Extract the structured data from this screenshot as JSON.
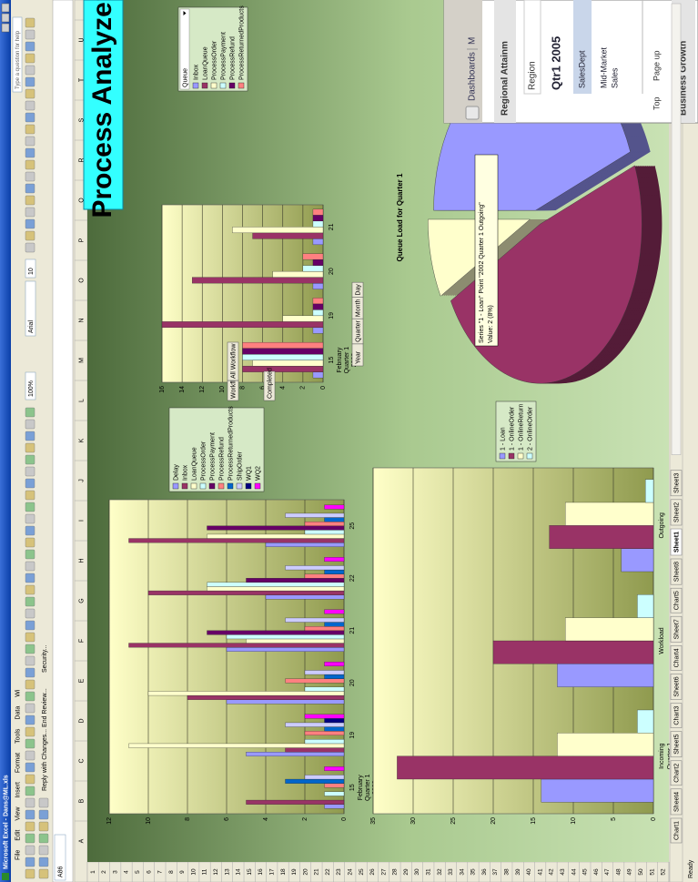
{
  "window": {
    "title": "Microsoft Excel - Dans@ML.xls",
    "menus": [
      "File",
      "Edit",
      "View",
      "Insert",
      "Format",
      "Tools",
      "Data",
      "Wi"
    ],
    "help_box": "Type a question for help",
    "zoom": "100%",
    "font": "Arial",
    "font_size": "10",
    "review": "Reply with Changes... End Review...",
    "security": "Security...",
    "name_box": "A86",
    "status": "Ready"
  },
  "banner": "Process Analyzer",
  "columns": [
    "A",
    "B",
    "C",
    "D",
    "E",
    "F",
    "G",
    "H",
    "I",
    "J",
    "K",
    "L",
    "M",
    "N",
    "O",
    "P",
    "Q",
    "R",
    "S",
    "T",
    "U"
  ],
  "rows": [
    1,
    2,
    3,
    4,
    5,
    6,
    7,
    8,
    9,
    10,
    11,
    12,
    13,
    14,
    15,
    16,
    17,
    18,
    19,
    20,
    21,
    22,
    23,
    24,
    25,
    26,
    27,
    28,
    29,
    30,
    31,
    32,
    33,
    34,
    35,
    36,
    37,
    38,
    39,
    40,
    41,
    42,
    43,
    44,
    45,
    46,
    47,
    48,
    49,
    50,
    51,
    52
  ],
  "sheet_tabs": [
    "Chart1",
    "Sheet4",
    "Chart2",
    "Sheet5",
    "Chart3",
    "Sheet6",
    "Chart4",
    "Sheet7",
    "Chart5",
    "Sheet8",
    "Sheet1",
    "Sheet2",
    "Sheet3"
  ],
  "active_tab": 10,
  "controls": {
    "workflow": "Workflow",
    "workflow_value": "All Workflow",
    "status_button": "Completed",
    "time_levels": [
      "Year",
      "Quarter",
      "Month",
      "Day"
    ]
  },
  "chart_data": [
    {
      "type": "bar",
      "categories": [
        "15",
        "19",
        "20",
        "21",
        "22",
        "25"
      ],
      "group_label": [
        "February",
        "Quarter 1",
        "2002"
      ],
      "ylim": [
        0,
        12
      ],
      "yticks": [
        0,
        2,
        4,
        6,
        8,
        10,
        12
      ],
      "grid": true,
      "series": [
        {
          "name": "Delay",
          "color": "#9999ff",
          "values": [
            1,
            5,
            6,
            6,
            4,
            4
          ]
        },
        {
          "name": "Inbox",
          "color": "#993366",
          "values": [
            5,
            3,
            8,
            11,
            10,
            11
          ]
        },
        {
          "name": "LoanQueue",
          "color": "#ffffcc",
          "values": [
            0,
            11,
            10,
            5,
            7,
            7
          ]
        },
        {
          "name": "ProcessOrder",
          "color": "#ccffff",
          "values": [
            1,
            2,
            2,
            6,
            7,
            2
          ]
        },
        {
          "name": "ProcessPayment",
          "color": "#660066",
          "values": [
            0,
            0,
            0,
            7,
            5,
            7
          ]
        },
        {
          "name": "ProcessRefund",
          "color": "#ff8080",
          "values": [
            1,
            2,
            3,
            2,
            2,
            2
          ]
        },
        {
          "name": "ProcessReturnedProducts",
          "color": "#0066cc",
          "values": [
            3,
            1,
            1,
            1,
            1,
            1
          ]
        },
        {
          "name": "ShipOrder",
          "color": "#ccccff",
          "values": [
            2,
            3,
            2,
            3,
            3,
            3
          ]
        },
        {
          "name": "WQ1",
          "color": "#000080",
          "values": [
            0,
            1,
            0,
            0,
            0,
            0
          ]
        },
        {
          "name": "WQ2",
          "color": "#ff00ff",
          "values": [
            1,
            2,
            1,
            1,
            1,
            1
          ]
        }
      ]
    },
    {
      "type": "bar",
      "categories": [
        "Incoming",
        "Workload",
        "Outgoing"
      ],
      "group_label": [
        "Quarter 1",
        "2002"
      ],
      "ylim": [
        0,
        35
      ],
      "yticks": [
        0,
        5,
        10,
        15,
        20,
        25,
        30,
        35
      ],
      "grid": true,
      "series": [
        {
          "name": "1 - Loan",
          "color": "#9999ff",
          "values": [
            14,
            12,
            4
          ]
        },
        {
          "name": "1 - OnlineOrder",
          "color": "#993366",
          "values": [
            32,
            20,
            13
          ]
        },
        {
          "name": "1 - OnlineReturn",
          "color": "#ffffcc",
          "values": [
            12,
            11,
            11
          ]
        },
        {
          "name": "2 - OnlineOrder",
          "color": "#ccffff",
          "values": [
            2,
            2,
            1
          ]
        }
      ]
    },
    {
      "type": "bar",
      "categories": [
        "15",
        "19",
        "20",
        "21"
      ],
      "group_label": [
        "February",
        "Quarter 1",
        "2002"
      ],
      "ylim": [
        0,
        16
      ],
      "yticks": [
        0,
        2,
        4,
        6,
        8,
        10,
        12,
        14,
        16
      ],
      "grid": true,
      "legend_title": "Queue",
      "series": [
        {
          "name": "Inbox",
          "color": "#9999ff",
          "values": [
            1,
            1,
            1,
            1
          ]
        },
        {
          "name": "LoanQueue",
          "color": "#993366",
          "values": [
            8,
            16,
            13,
            7
          ]
        },
        {
          "name": "ProcessOrder",
          "color": "#ffffcc",
          "values": [
            7,
            4,
            5,
            9
          ]
        },
        {
          "name": "ProcessPayment",
          "color": "#ccffff",
          "values": [
            8,
            1,
            2,
            1
          ]
        },
        {
          "name": "ProcessRefund",
          "color": "#660066",
          "values": [
            8,
            1,
            1,
            1
          ]
        },
        {
          "name": "ProcessReturnedProducts",
          "color": "#ff8080",
          "values": [
            8,
            1,
            2,
            1
          ]
        }
      ]
    },
    {
      "type": "pie",
      "title": "Queue Load for Quarter 1",
      "values": [
        11,
        12,
        2
      ],
      "colors": [
        "#9999ff",
        "#993366",
        "#ffffcc"
      ],
      "tooltip": [
        "Series \"1 - Loan\" Point \"2002 Quarter 1 Outgoing\"",
        "Value: 2 (8%)"
      ]
    }
  ],
  "dashboard": {
    "tabs": [
      "Dashboards",
      "M"
    ],
    "title": "Regional Attainm",
    "region": "Region",
    "period": "Qtr1 2005",
    "header": "SalesDept",
    "row": [
      "Mid-Market",
      "Sales"
    ],
    "nav": [
      "Top",
      "Page up"
    ],
    "footer": "Business Growth"
  }
}
